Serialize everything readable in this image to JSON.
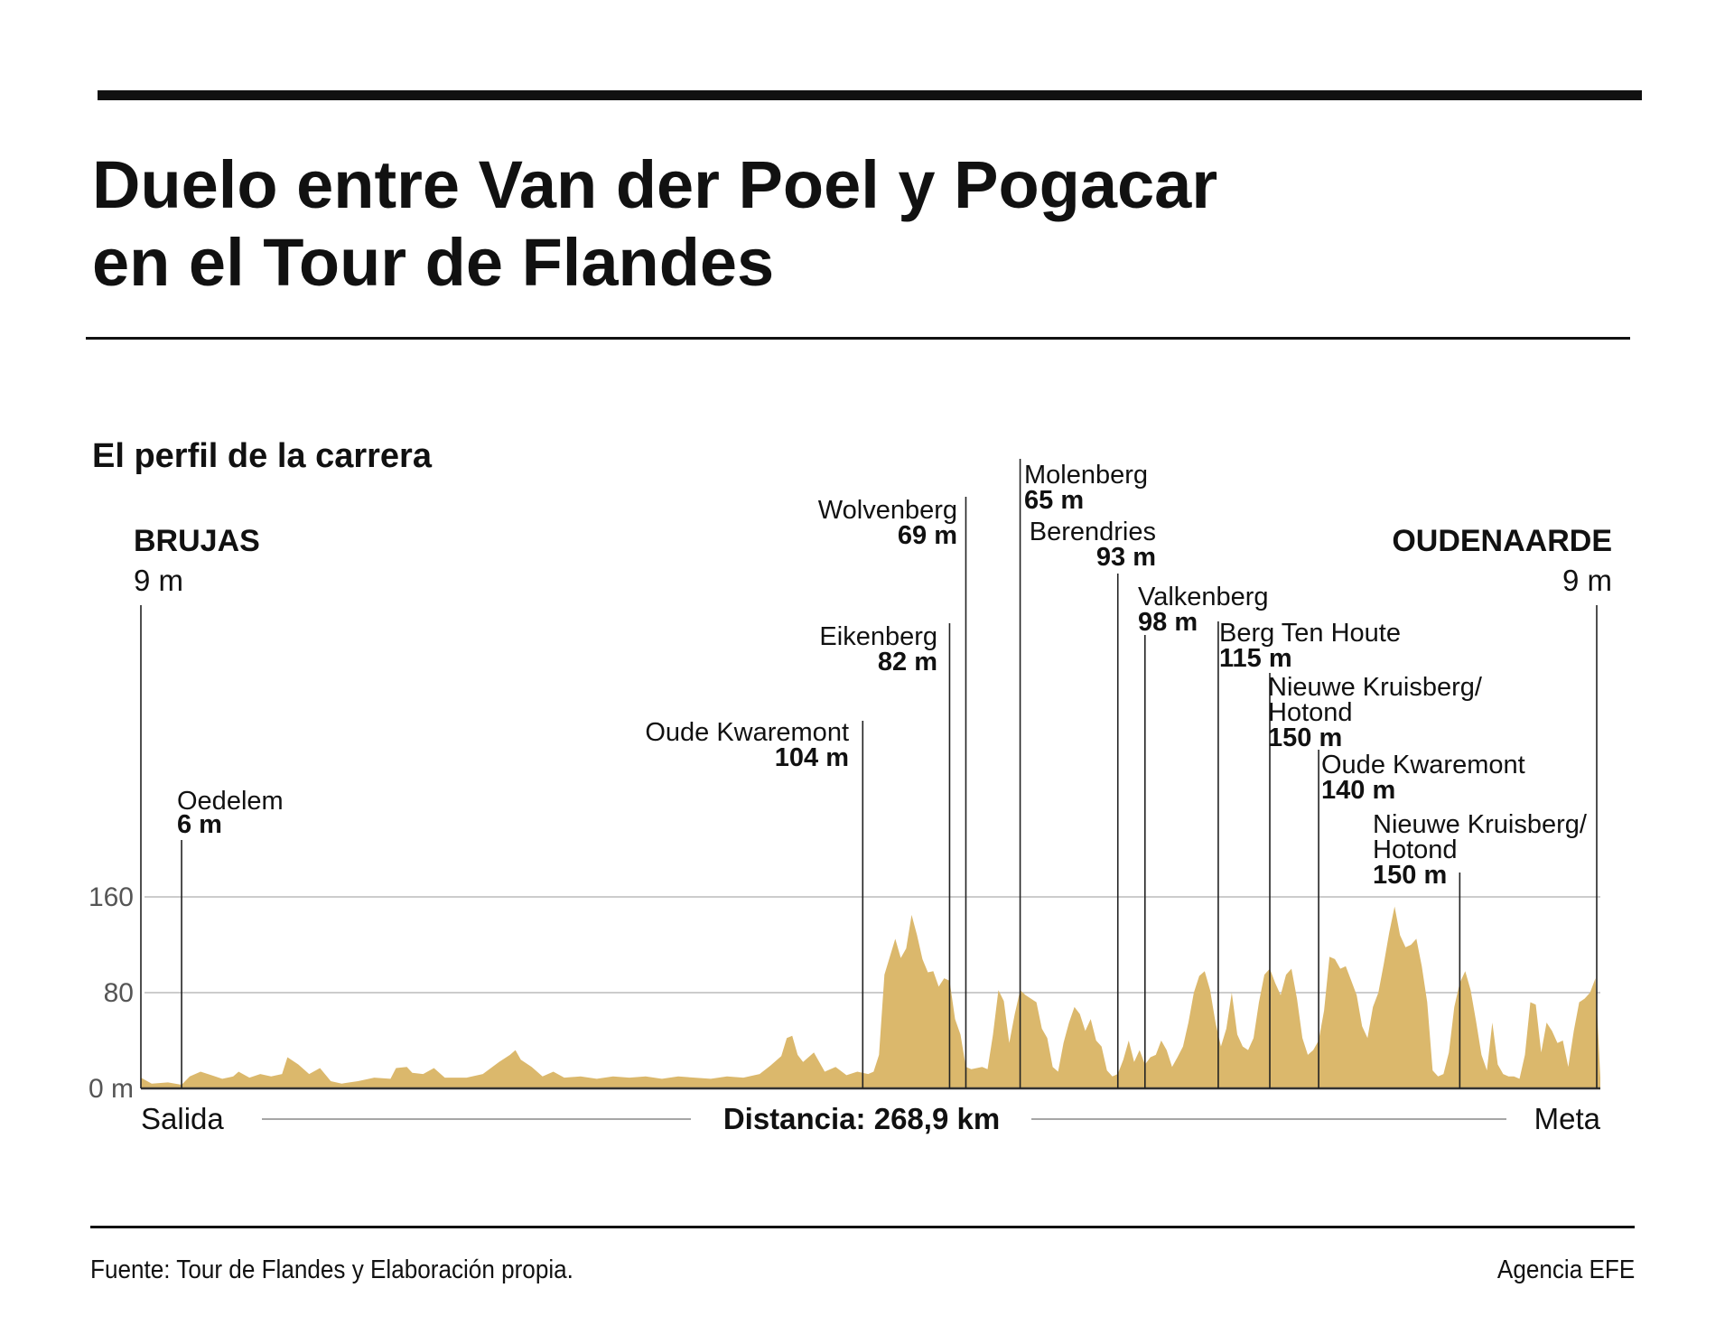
{
  "header": {
    "title_line1": "Duelo entre Van der Poel y Pogacar",
    "title_line2": "en el Tour de Flandes",
    "subtitle": "El perfil de la carrera"
  },
  "footer": {
    "source": "Fuente: Tour de Flandes y Elaboración propia.",
    "agency": "Agencia EFE"
  },
  "colors": {
    "profile_fill": "#dbb86c",
    "grid": "#bbbbbb",
    "text": "#111111",
    "axis_text": "#555555"
  },
  "chart_data": {
    "type": "area",
    "title": "El perfil de la carrera",
    "xlabel": "Distancia: 268,9 km",
    "ylabel": "",
    "xlim": [
      0,
      268.9
    ],
    "ylim": [
      0,
      160
    ],
    "y_ticks": [
      {
        "value": 0,
        "label": "0 m"
      },
      {
        "value": 80,
        "label": "80"
      },
      {
        "value": 160,
        "label": "160"
      }
    ],
    "x_axis_labels": {
      "start": "Salida",
      "end": "Meta"
    },
    "grid": true,
    "start": {
      "name": "BRUJAS",
      "elevation": "9 m"
    },
    "finish": {
      "name": "OUDENAARDE",
      "elevation": "9 m"
    },
    "climbs": [
      {
        "name": "Oedelem",
        "elevation": "6 m",
        "km": 7.5
      },
      {
        "name": "Oude Kwaremont",
        "elevation": "104 m",
        "km": 133
      },
      {
        "name": "Eikenberg",
        "elevation": "82 m",
        "km": 149
      },
      {
        "name": "Wolvenberg",
        "elevation": "69 m",
        "km": 152
      },
      {
        "name": "Molenberg",
        "elevation": "65 m",
        "km": 162
      },
      {
        "name": "Berendries",
        "elevation": "93 m",
        "km": 180
      },
      {
        "name": "Valkenberg",
        "elevation": "98 m",
        "km": 185
      },
      {
        "name": "Berg Ten Houte",
        "elevation": "115 m",
        "km": 198.5
      },
      {
        "name": "Nieuwe Kruisberg/ Hotond",
        "elevation": "150 m",
        "km": 208
      },
      {
        "name": "Oude Kwaremont",
        "elevation": "140 m",
        "km": 217
      },
      {
        "name": "Nieuwe Kruisberg/ Hotond",
        "elevation": "150 m",
        "km": 243
      }
    ],
    "profile": [
      [
        0,
        9
      ],
      [
        2,
        4
      ],
      [
        5,
        5
      ],
      [
        7.5,
        3
      ],
      [
        9,
        10
      ],
      [
        11,
        14
      ],
      [
        13,
        11
      ],
      [
        15,
        8
      ],
      [
        17,
        10
      ],
      [
        18,
        14
      ],
      [
        20,
        9
      ],
      [
        22,
        12
      ],
      [
        24,
        10
      ],
      [
        26,
        12
      ],
      [
        27,
        26
      ],
      [
        29,
        20
      ],
      [
        31,
        12
      ],
      [
        33,
        17
      ],
      [
        35,
        6
      ],
      [
        37,
        4
      ],
      [
        40,
        6
      ],
      [
        43,
        9
      ],
      [
        46,
        8
      ],
      [
        47,
        17
      ],
      [
        49,
        18
      ],
      [
        50,
        13
      ],
      [
        52,
        12
      ],
      [
        54,
        17
      ],
      [
        56,
        9
      ],
      [
        60,
        9
      ],
      [
        63,
        12
      ],
      [
        66,
        22
      ],
      [
        68,
        28
      ],
      [
        69,
        32
      ],
      [
        70,
        24
      ],
      [
        72,
        18
      ],
      [
        74,
        10
      ],
      [
        76,
        14
      ],
      [
        78,
        9
      ],
      [
        81,
        10
      ],
      [
        84,
        8
      ],
      [
        87,
        10
      ],
      [
        90,
        9
      ],
      [
        93,
        10
      ],
      [
        96,
        8
      ],
      [
        99,
        10
      ],
      [
        102,
        9
      ],
      [
        105,
        8
      ],
      [
        108,
        10
      ],
      [
        111,
        9
      ],
      [
        114,
        12
      ],
      [
        116,
        19
      ],
      [
        118,
        27
      ],
      [
        119,
        42
      ],
      [
        120,
        44
      ],
      [
        121,
        28
      ],
      [
        122,
        22
      ],
      [
        124,
        30
      ],
      [
        126,
        14
      ],
      [
        128,
        18
      ],
      [
        130,
        11
      ],
      [
        132,
        14
      ],
      [
        134,
        12
      ],
      [
        135,
        14
      ],
      [
        136,
        28
      ],
      [
        137,
        95
      ],
      [
        138,
        110
      ],
      [
        139,
        125
      ],
      [
        140,
        109
      ],
      [
        141,
        117
      ],
      [
        142,
        145
      ],
      [
        143,
        128
      ],
      [
        144,
        108
      ],
      [
        145,
        97
      ],
      [
        146,
        98
      ],
      [
        147,
        85
      ],
      [
        148,
        92
      ],
      [
        149,
        90
      ],
      [
        150,
        58
      ],
      [
        151,
        45
      ],
      [
        152,
        18
      ],
      [
        153,
        16
      ],
      [
        155,
        18
      ],
      [
        156,
        16
      ],
      [
        157,
        45
      ],
      [
        158,
        82
      ],
      [
        159,
        73
      ],
      [
        160,
        38
      ],
      [
        161,
        62
      ],
      [
        162,
        82
      ],
      [
        163,
        78
      ],
      [
        165,
        72
      ],
      [
        166,
        50
      ],
      [
        167,
        42
      ],
      [
        168,
        18
      ],
      [
        169,
        14
      ],
      [
        170,
        38
      ],
      [
        171,
        55
      ],
      [
        172,
        68
      ],
      [
        173,
        62
      ],
      [
        174,
        48
      ],
      [
        175,
        58
      ],
      [
        176,
        40
      ],
      [
        177,
        35
      ],
      [
        178,
        15
      ],
      [
        179,
        10
      ],
      [
        180,
        12
      ],
      [
        181,
        24
      ],
      [
        182,
        40
      ],
      [
        183,
        22
      ],
      [
        184,
        32
      ],
      [
        185,
        20
      ],
      [
        186,
        26
      ],
      [
        187,
        28
      ],
      [
        188,
        40
      ],
      [
        189,
        32
      ],
      [
        190,
        18
      ],
      [
        191,
        26
      ],
      [
        192,
        35
      ],
      [
        193,
        55
      ],
      [
        194,
        80
      ],
      [
        195,
        94
      ],
      [
        196,
        98
      ],
      [
        197,
        82
      ],
      [
        198,
        55
      ],
      [
        199,
        35
      ],
      [
        200,
        50
      ],
      [
        201,
        80
      ],
      [
        202,
        45
      ],
      [
        203,
        35
      ],
      [
        204,
        32
      ],
      [
        205,
        42
      ],
      [
        206,
        72
      ],
      [
        207,
        95
      ],
      [
        208,
        100
      ],
      [
        209,
        88
      ],
      [
        210,
        78
      ],
      [
        211,
        95
      ],
      [
        212,
        100
      ],
      [
        213,
        75
      ],
      [
        214,
        42
      ],
      [
        215,
        28
      ],
      [
        216,
        32
      ],
      [
        217,
        40
      ],
      [
        218,
        65
      ],
      [
        219,
        110
      ],
      [
        220,
        108
      ],
      [
        221,
        100
      ],
      [
        222,
        102
      ],
      [
        223,
        90
      ],
      [
        224,
        78
      ],
      [
        225,
        52
      ],
      [
        226,
        42
      ],
      [
        227,
        68
      ],
      [
        228,
        80
      ],
      [
        229,
        104
      ],
      [
        230,
        130
      ],
      [
        231,
        152
      ],
      [
        232,
        128
      ],
      [
        233,
        118
      ],
      [
        234,
        120
      ],
      [
        235,
        125
      ],
      [
        236,
        102
      ],
      [
        237,
        72
      ],
      [
        238,
        15
      ],
      [
        239,
        10
      ],
      [
        240,
        12
      ],
      [
        241,
        30
      ],
      [
        242,
        68
      ],
      [
        243,
        88
      ],
      [
        244,
        98
      ],
      [
        245,
        82
      ],
      [
        246,
        56
      ],
      [
        247,
        28
      ],
      [
        248,
        15
      ],
      [
        249,
        55
      ],
      [
        250,
        20
      ],
      [
        251,
        12
      ],
      [
        252,
        10
      ],
      [
        253,
        10
      ],
      [
        254,
        8
      ],
      [
        255,
        28
      ],
      [
        256,
        72
      ],
      [
        257,
        70
      ],
      [
        258,
        30
      ],
      [
        259,
        55
      ],
      [
        260,
        48
      ],
      [
        261,
        38
      ],
      [
        262,
        40
      ],
      [
        263,
        18
      ],
      [
        264,
        48
      ],
      [
        265,
        72
      ],
      [
        266,
        75
      ],
      [
        267,
        80
      ],
      [
        268,
        92
      ],
      [
        268.9,
        9
      ]
    ]
  }
}
